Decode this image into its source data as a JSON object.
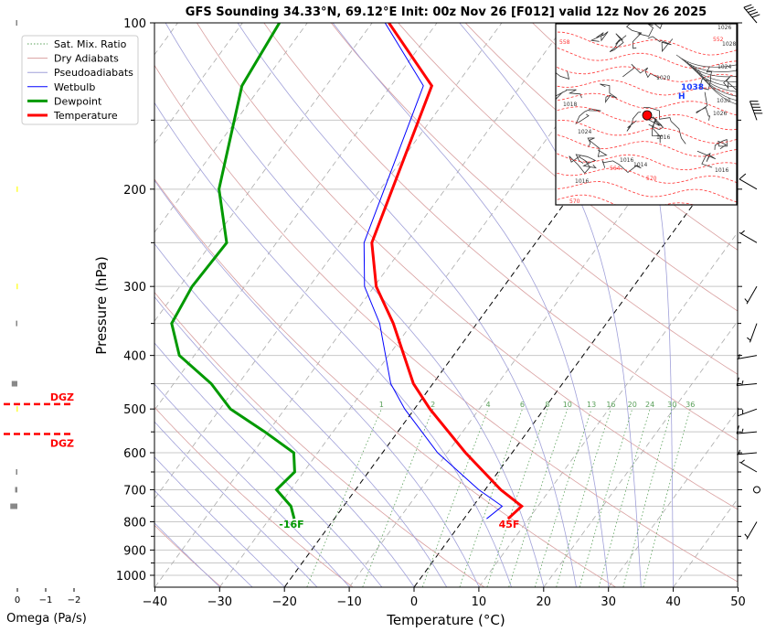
{
  "chart_data": {
    "type": "skew-t",
    "title": "GFS Sounding 34.33°N, 69.12°E Init: 00z Nov 26 [F012] valid 12z Nov 26 2025",
    "xlabel": "Temperature (°C)",
    "ylabel": "Pressure (hPa)",
    "xlim": [
      -40,
      50
    ],
    "ylim": [
      1050,
      100
    ],
    "x_ticks": [
      -40,
      -30,
      -20,
      -10,
      0,
      10,
      20,
      30,
      40,
      50
    ],
    "y_ticks": [
      100,
      200,
      300,
      400,
      500,
      600,
      700,
      800,
      900,
      1000
    ],
    "y_minor_ticks": [
      150,
      250,
      350,
      450,
      550,
      650,
      750,
      850,
      950
    ],
    "legend": {
      "location": "upper-left",
      "entries": [
        {
          "label": "Sat. Mix. Ratio",
          "color": "#5aa05a",
          "style": "dotted"
        },
        {
          "label": "Dry Adiabats",
          "color": "#d9a0a0",
          "style": "solid"
        },
        {
          "label": "Pseudoadiabats",
          "color": "#a0a0d9",
          "style": "solid"
        },
        {
          "label": "Wetbulb",
          "color": "#0000ff",
          "style": "solid"
        },
        {
          "label": "Dewpoint",
          "color": "#009900",
          "style": "solid-thick"
        },
        {
          "label": "Temperature",
          "color": "#ff0000",
          "style": "solid-thick"
        }
      ]
    },
    "series": [
      {
        "name": "Temperature",
        "color": "#ff0000",
        "points": [
          [
            790,
            6.8
          ],
          [
            750,
            7.5
          ],
          [
            700,
            2.4
          ],
          [
            600,
            -7.2
          ],
          [
            500,
            -17.6
          ],
          [
            450,
            -23.0
          ],
          [
            350,
            -32.9
          ],
          [
            300,
            -39.7
          ],
          [
            250,
            -45.3
          ],
          [
            130,
            -53.7
          ],
          [
            100,
            -67.4
          ]
        ]
      },
      {
        "name": "Dewpoint",
        "color": "#009900",
        "points": [
          [
            790,
            -26.2
          ],
          [
            750,
            -28.1
          ],
          [
            700,
            -32.2
          ],
          [
            650,
            -31.4
          ],
          [
            600,
            -33.7
          ],
          [
            550,
            -40.5
          ],
          [
            500,
            -48.4
          ],
          [
            450,
            -54.2
          ],
          [
            400,
            -62.3
          ],
          [
            350,
            -67.1
          ],
          [
            300,
            -68.1
          ],
          [
            250,
            -67.7
          ],
          [
            200,
            -74.9
          ],
          [
            130,
            -83.0
          ],
          [
            100,
            -84.3
          ]
        ]
      },
      {
        "name": "Wetbulb",
        "color": "#0000ff",
        "points": [
          [
            790,
            3.5
          ],
          [
            750,
            4.5
          ],
          [
            700,
            -1.0
          ],
          [
            600,
            -11.5
          ],
          [
            500,
            -21.5
          ],
          [
            450,
            -26.5
          ],
          [
            350,
            -35.0
          ],
          [
            300,
            -41.5
          ],
          [
            250,
            -46.5
          ],
          [
            130,
            -55.0
          ],
          [
            100,
            -68.0
          ]
        ]
      }
    ],
    "mixing_ratio_labels": [
      "1",
      "2",
      "4",
      "6",
      "8",
      "10",
      "13",
      "16",
      "20",
      "24",
      "30",
      "36"
    ],
    "mixing_ratio_values": [
      1,
      2,
      4,
      6,
      8,
      10,
      13,
      16,
      20,
      24,
      30,
      36
    ],
    "surface_labels": {
      "temperature": "45F",
      "dewpoint": "-16F"
    },
    "omega_panel": {
      "xlabel": "Omega (Pa/s)",
      "x_ticks": [
        "0",
        "−1",
        "−2"
      ],
      "dgz_label": "DGZ",
      "dgz_top_hPa": 490,
      "dgz_bottom_hPa": 555,
      "values": [
        {
          "p": 100,
          "omega": 0.05
        },
        {
          "p": 200,
          "omega": -0.05
        },
        {
          "p": 300,
          "omega": -0.05
        },
        {
          "p": 350,
          "omega": 0.05
        },
        {
          "p": 450,
          "omega": 0.2
        },
        {
          "p": 500,
          "omega": -0.05
        },
        {
          "p": 650,
          "omega": 0.05
        },
        {
          "p": 700,
          "omega": 0.08
        },
        {
          "p": 750,
          "omega": 0.25
        }
      ]
    },
    "wind_barbs": [
      {
        "p": 100,
        "speed_kt": 50,
        "dir": 320
      },
      {
        "p": 150,
        "speed_kt": 50,
        "dir": 340
      },
      {
        "p": 200,
        "speed_kt": 10,
        "dir": 300
      },
      {
        "p": 250,
        "speed_kt": 5,
        "dir": 300
      },
      {
        "p": 300,
        "speed_kt": 5,
        "dir": 210
      },
      {
        "p": 350,
        "speed_kt": 5,
        "dir": 200
      },
      {
        "p": 400,
        "speed_kt": 5,
        "dir": 260
      },
      {
        "p": 450,
        "speed_kt": 15,
        "dir": 265
      },
      {
        "p": 500,
        "speed_kt": 15,
        "dir": 250
      },
      {
        "p": 550,
        "speed_kt": 15,
        "dir": 265
      },
      {
        "p": 600,
        "speed_kt": 5,
        "dir": 265
      },
      {
        "p": 650,
        "speed_kt": 5,
        "dir": 300
      },
      {
        "p": 700,
        "speed_kt": 0,
        "dir": 0
      },
      {
        "p": 800,
        "speed_kt": 5,
        "dir": 210
      }
    ],
    "inset_map": {
      "labels": [
        "558",
        "1026",
        "1028",
        "1024",
        "552",
        "1020",
        "1038",
        "H",
        "1030",
        "1026",
        "1018",
        "1016",
        "1024",
        "1014",
        "1016",
        "1016",
        "564",
        "570",
        "1016",
        "570"
      ],
      "station_marker_color": "#ff0000",
      "high_label": "H",
      "high_value": "1038"
    }
  }
}
